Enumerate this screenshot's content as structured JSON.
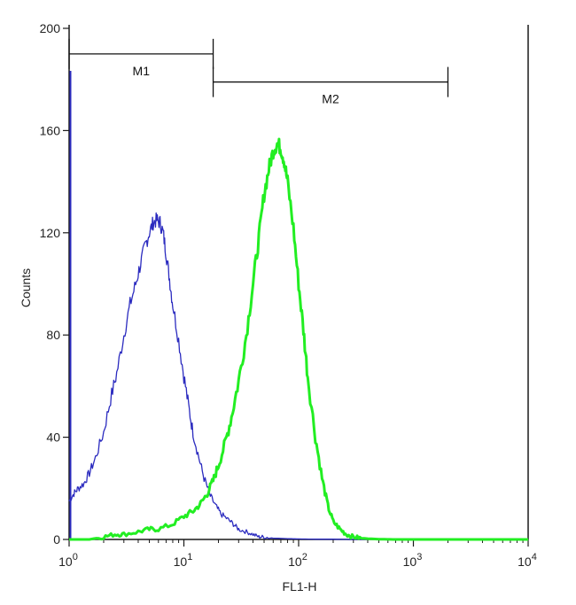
{
  "chart_data": {
    "type": "line",
    "xlabel": "FL1-H",
    "ylabel": "Counts",
    "x_scale": "log",
    "xlim": [
      1,
      10000
    ],
    "ylim": [
      0,
      200
    ],
    "x_ticks": [
      {
        "value": 1,
        "base": "10",
        "exp": "0"
      },
      {
        "value": 10,
        "base": "10",
        "exp": "1"
      },
      {
        "value": 100,
        "base": "10",
        "exp": "2"
      },
      {
        "value": 1000,
        "base": "10",
        "exp": "3"
      },
      {
        "value": 10000,
        "base": "10",
        "exp": "4"
      }
    ],
    "y_ticks": [
      0,
      40,
      80,
      120,
      160,
      200
    ],
    "grid": false,
    "markers": [
      {
        "label": "M1",
        "x_range": [
          1,
          18
        ],
        "y": 190
      },
      {
        "label": "M2",
        "x_range": [
          18,
          2000
        ],
        "y": 179
      }
    ],
    "series": [
      {
        "color": "#2b2bbf",
        "x": [
          1.0,
          1.1,
          1.2,
          1.35,
          1.5,
          1.7,
          2.0,
          2.3,
          2.6,
          3.0,
          3.4,
          3.8,
          4.2,
          4.6,
          5.0,
          5.4,
          5.8,
          6.2,
          6.6,
          7.0,
          7.5,
          8.0,
          9.0,
          10,
          11,
          12,
          13.5,
          15,
          17,
          19,
          21,
          24,
          27,
          30,
          35,
          40,
          45,
          50,
          60,
          80,
          100,
          150,
          200,
          300,
          400
        ],
        "values": [
          15,
          18,
          20,
          22,
          26,
          32,
          42,
          55,
          65,
          80,
          92,
          100,
          108,
          115,
          120,
          124,
          125,
          124,
          120,
          112,
          102,
          92,
          78,
          64,
          52,
          42,
          32,
          24,
          17,
          13,
          10,
          8,
          6,
          4,
          3,
          2,
          1,
          1,
          0.5,
          0.3,
          0.2,
          0.1,
          0.1,
          0,
          0
        ]
      },
      {
        "color": "#22ee22",
        "x": [
          1.0,
          1.5,
          2.0,
          2.5,
          3.0,
          4.0,
          5.0,
          6.0,
          8.0,
          10,
          12,
          14,
          16,
          18,
          20,
          23,
          26,
          30,
          35,
          40,
          45,
          50,
          55,
          60,
          65,
          70,
          75,
          80,
          90,
          100,
          110,
          120,
          140,
          160,
          180,
          200,
          230,
          260,
          300,
          350,
          400,
          500,
          700,
          1000,
          10000
        ],
        "values": [
          0,
          0,
          1,
          2,
          2,
          3,
          4,
          4,
          6,
          9,
          11,
          14,
          18,
          23,
          29,
          38,
          48,
          62,
          80,
          100,
          118,
          135,
          145,
          152,
          155,
          153,
          148,
          140,
          122,
          100,
          82,
          64,
          40,
          24,
          13,
          7,
          4,
          2,
          1,
          0.5,
          0.3,
          0.1,
          0,
          0,
          0
        ]
      }
    ]
  }
}
